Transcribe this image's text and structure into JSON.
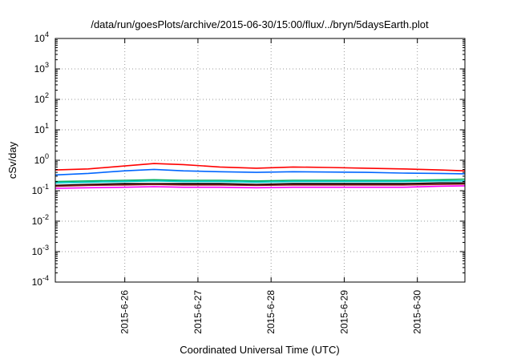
{
  "chart_data": {
    "type": "line",
    "title": "/data/run/goesPlots/archive/2015-06-30/15:00/flux/../bryn/5daysEarth.plot",
    "xlabel": "Coordinated Universal Time (UTC)",
    "ylabel": "cSv/day",
    "yscale": "log",
    "ylim": [
      0.0001,
      10000
    ],
    "xlim": [
      25.05,
      30.65
    ],
    "ytick_labels": [
      {
        "base": "10",
        "exp": "-4",
        "value": 0.0001
      },
      {
        "base": "10",
        "exp": "-3",
        "value": 0.001
      },
      {
        "base": "10",
        "exp": "-2",
        "value": 0.01
      },
      {
        "base": "10",
        "exp": "-1",
        "value": 0.1
      },
      {
        "base": "10",
        "exp": "0",
        "value": 1
      },
      {
        "base": "10",
        "exp": "1",
        "value": 10
      },
      {
        "base": "10",
        "exp": "2",
        "value": 100
      },
      {
        "base": "10",
        "exp": "3",
        "value": 1000
      },
      {
        "base": "10",
        "exp": "4",
        "value": 10000
      }
    ],
    "xtick_labels": [
      {
        "label": "2015-6-26",
        "value": 26
      },
      {
        "label": "2015-6-27",
        "value": 27
      },
      {
        "label": "2015-6-28",
        "value": 28
      },
      {
        "label": "2015-6-29",
        "value": 29
      },
      {
        "label": "2015-6-30",
        "value": 30
      }
    ],
    "grid": true,
    "series": [
      {
        "color": "#ff0000",
        "x": [
          25.05,
          25.5,
          26.0,
          26.4,
          26.8,
          27.3,
          27.8,
          28.3,
          28.8,
          29.3,
          29.8,
          30.3,
          30.65
        ],
        "values": [
          0.48,
          0.52,
          0.65,
          0.78,
          0.72,
          0.6,
          0.55,
          0.6,
          0.58,
          0.55,
          0.52,
          0.48,
          0.45
        ]
      },
      {
        "color": "#0066ff",
        "x": [
          25.05,
          25.5,
          26.0,
          26.4,
          26.8,
          27.3,
          27.8,
          28.3,
          28.8,
          29.3,
          29.8,
          30.3,
          30.65
        ],
        "values": [
          0.33,
          0.37,
          0.45,
          0.5,
          0.45,
          0.42,
          0.4,
          0.42,
          0.41,
          0.4,
          0.38,
          0.37,
          0.36
        ]
      },
      {
        "color": "#00b060",
        "x": [
          25.05,
          25.5,
          26.0,
          26.4,
          26.8,
          27.3,
          27.8,
          28.3,
          28.8,
          29.3,
          29.8,
          30.3,
          30.65
        ],
        "values": [
          0.2,
          0.21,
          0.22,
          0.23,
          0.22,
          0.22,
          0.21,
          0.22,
          0.22,
          0.22,
          0.22,
          0.23,
          0.24
        ]
      },
      {
        "color": "#00cccc",
        "x": [
          25.05,
          25.5,
          26.0,
          26.4,
          26.8,
          27.3,
          27.8,
          28.3,
          28.8,
          29.3,
          29.8,
          30.3,
          30.65
        ],
        "values": [
          0.18,
          0.19,
          0.2,
          0.21,
          0.2,
          0.2,
          0.19,
          0.2,
          0.2,
          0.2,
          0.2,
          0.21,
          0.21
        ]
      },
      {
        "color": "#000000",
        "x": [
          25.05,
          25.5,
          26.0,
          26.4,
          26.8,
          27.3,
          27.8,
          28.3,
          28.8,
          29.3,
          29.8,
          30.3,
          30.65
        ],
        "values": [
          0.15,
          0.16,
          0.17,
          0.17,
          0.17,
          0.17,
          0.16,
          0.17,
          0.17,
          0.17,
          0.17,
          0.18,
          0.18
        ]
      },
      {
        "color": "#8b1a1a",
        "x": [
          25.05,
          25.5,
          26.0,
          26.4,
          26.8,
          27.3,
          27.8,
          28.3,
          28.8,
          29.3,
          29.8,
          30.3,
          30.65
        ],
        "values": [
          0.14,
          0.15,
          0.155,
          0.16,
          0.155,
          0.155,
          0.15,
          0.155,
          0.155,
          0.155,
          0.155,
          0.16,
          0.165
        ]
      },
      {
        "color": "#ff00ff",
        "x": [
          25.05,
          25.5,
          26.0,
          26.4,
          26.8,
          27.3,
          27.8,
          28.3,
          28.8,
          29.3,
          29.8,
          30.3,
          30.65
        ],
        "values": [
          0.12,
          0.125,
          0.13,
          0.135,
          0.13,
          0.13,
          0.125,
          0.13,
          0.13,
          0.13,
          0.13,
          0.14,
          0.145
        ]
      }
    ]
  }
}
